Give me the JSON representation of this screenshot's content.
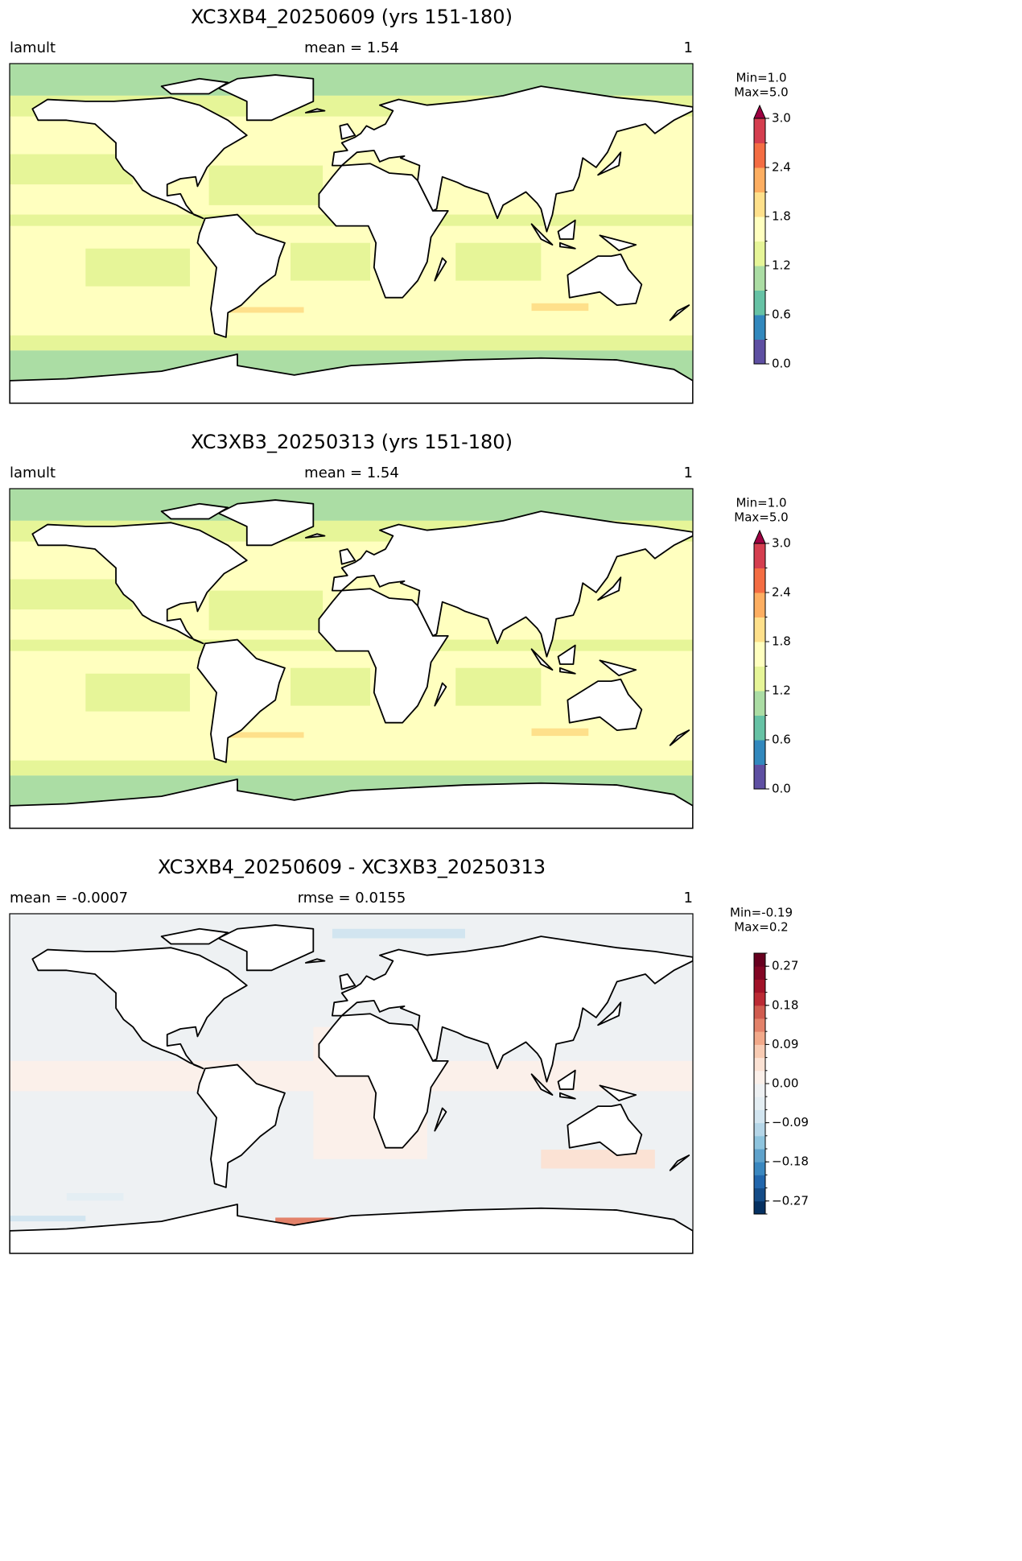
{
  "chart_data": [
    {
      "type": "map",
      "title": "XC3XB4_20250609 (yrs 151-180)",
      "left_label": "lamult",
      "center_label": "mean = 1.54",
      "right_label": "1",
      "colorbar": {
        "label_lines": [
          "Min=1.0",
          "Max=5.0"
        ],
        "clim": [
          0,
          3
        ],
        "extend": "max",
        "extend_color": "#9e0142",
        "levels": [
          0,
          0.3,
          0.6,
          0.9,
          1.2,
          1.5,
          1.8,
          2.1,
          2.4,
          2.7,
          3.0
        ],
        "colors": [
          "#5e4fa2",
          "#3288bd",
          "#66c2a5",
          "#abdda4",
          "#e6f598",
          "#ffffbf",
          "#fee08b",
          "#fdae61",
          "#f46d43",
          "#d53e4f"
        ],
        "ticks": [
          {
            "value": 0,
            "label": "0.0"
          },
          {
            "value": 0.6,
            "label": "0.6"
          },
          {
            "value": 1.2,
            "label": "1.2"
          },
          {
            "value": 1.8,
            "label": "1.8"
          },
          {
            "value": 2.4,
            "label": "2.4"
          },
          {
            "value": 3,
            "label": "3.0"
          }
        ]
      }
    },
    {
      "type": "map",
      "title": "XC3XB3_20250313 (yrs 151-180)",
      "left_label": "lamult",
      "center_label": "mean = 1.54",
      "right_label": "1",
      "colorbar": {
        "label_lines": [
          "Min=1.0",
          "Max=5.0"
        ],
        "clim": [
          0,
          3
        ],
        "extend": "max",
        "extend_color": "#9e0142",
        "levels": [
          0,
          0.3,
          0.6,
          0.9,
          1.2,
          1.5,
          1.8,
          2.1,
          2.4,
          2.7,
          3.0
        ],
        "colors": [
          "#5e4fa2",
          "#3288bd",
          "#66c2a5",
          "#abdda4",
          "#e6f598",
          "#ffffbf",
          "#fee08b",
          "#fdae61",
          "#f46d43",
          "#d53e4f"
        ],
        "ticks": [
          {
            "value": 0,
            "label": "0.0"
          },
          {
            "value": 0.6,
            "label": "0.6"
          },
          {
            "value": 1.2,
            "label": "1.2"
          },
          {
            "value": 1.8,
            "label": "1.8"
          },
          {
            "value": 2.4,
            "label": "2.4"
          },
          {
            "value": 3,
            "label": "3.0"
          }
        ]
      }
    },
    {
      "type": "map",
      "title": "XC3XB4_20250609 - XC3XB3_20250313",
      "left_label": "mean = -0.0007",
      "center_label": "rmse = 0.0155",
      "right_label": "1",
      "colorbar": {
        "label_lines": [
          "Min=-0.19",
          "Max=0.2"
        ],
        "clim": [
          -0.3,
          0.3
        ],
        "extend": "neither",
        "levels": [
          -0.3,
          -0.27,
          -0.24,
          -0.21,
          -0.18,
          -0.15,
          -0.12,
          -0.09,
          -0.06,
          -0.03,
          0,
          0.03,
          0.06,
          0.09,
          0.12,
          0.15,
          0.18,
          0.21,
          0.24,
          0.27,
          0.3
        ],
        "colors": [
          "#053061",
          "#144c87",
          "#2166ac",
          "#3a87bf",
          "#5fa2cb",
          "#8ec4de",
          "#b5d6e8",
          "#d2e5f0",
          "#e4eef3",
          "#eef1f3",
          "#fbf0ea",
          "#fbe2d4",
          "#f8cbb3",
          "#f2a98a",
          "#e3826a",
          "#d05b4f",
          "#bb2a34",
          "#a11228",
          "#820624",
          "#67001f"
        ],
        "ticks": [
          {
            "value": -0.27,
            "label": "−0.27"
          },
          {
            "value": -0.18,
            "label": "−0.18"
          },
          {
            "value": -0.09,
            "label": "−0.09"
          },
          {
            "value": 0,
            "label": "0.00"
          },
          {
            "value": 0.09,
            "label": "0.09"
          },
          {
            "value": 0.18,
            "label": "0.18"
          },
          {
            "value": 0.27,
            "label": "0.27"
          }
        ]
      }
    }
  ]
}
